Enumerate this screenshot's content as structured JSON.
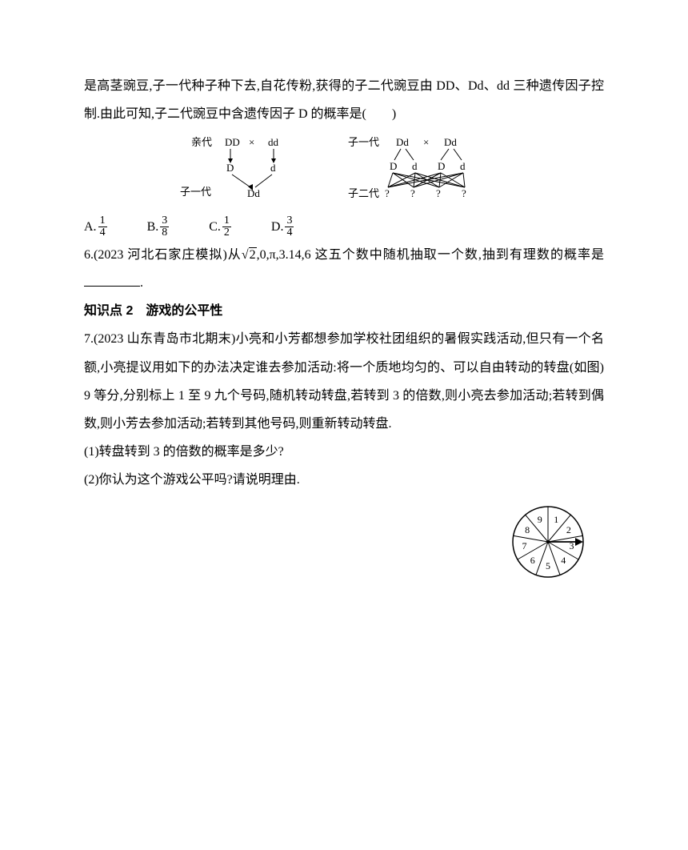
{
  "p1": "是高茎豌豆,子一代种子种下去,自花传粉,获得的子二代豌豆由 DD、Dd、dd 三种遗传因子控制.由此可知,子二代豌豆中含遗传因子 D 的概率是(  )",
  "genetics": {
    "left": {
      "line1_label": "亲代",
      "l1a": "DD",
      "l1x": "×",
      "l1b": "dd",
      "l2a": "D",
      "l2b": "d",
      "line3_label": "子一代",
      "l3": "Dd"
    },
    "right": {
      "line1_label": "子一代",
      "l1a": "Dd",
      "l1x": "×",
      "l1b": "Dd",
      "l2a": "D",
      "l2b": "d",
      "l2c": "D",
      "l2d": "d",
      "line3_label": "子二代",
      "l3a": "?",
      "l3b": "?",
      "l3c": "?",
      "l3d": "?"
    },
    "font_size": 13,
    "color": "#000000"
  },
  "options5": {
    "A_label": "A.",
    "A_num": "1",
    "A_den": "4",
    "B_label": "B.",
    "B_num": "3",
    "B_den": "8",
    "C_label": "C.",
    "C_num": "1",
    "C_den": "2",
    "D_label": "D.",
    "D_num": "3",
    "D_den": "4"
  },
  "q6_pre": "6.(2023 河北石家庄模拟)从",
  "q6_rad": "2",
  "q6_mid": ",0,π,3.14,6 这五个数中随机抽取一个数,抽到有理数的概率是",
  "q6_period": ".",
  "kp2": "知识点 2 游戏的公平性",
  "q7a": "7.(2023 山东青岛市北期末)小亮和小芳都想参加学校社团组织的暑假实践活动,但只有一个名额,小亮提议用如下的办法决定谁去参加活动:将一个质地均匀的、可以自由转动的转盘(如图)9 等分,分别标上 1 至 9 九个号码,随机转动转盘,若转到 3 的倍数,则小亮去参加活动;若转到偶数,则小芳去参加活动;若转到其他号码,则重新转动转盘.",
  "q7b": "(1)转盘转到 3 的倍数的概率是多少?",
  "q7c": "(2)你认为这个游戏公平吗?请说明理由.",
  "spinner": {
    "sectors": [
      "1",
      "2",
      "3",
      "4",
      "5",
      "6",
      "7",
      "8",
      "9"
    ],
    "radius": 44,
    "stroke": "#000000",
    "fill": "#ffffff",
    "font_size": 12
  },
  "page_bg": "#ffffff",
  "text_color": "#000000"
}
